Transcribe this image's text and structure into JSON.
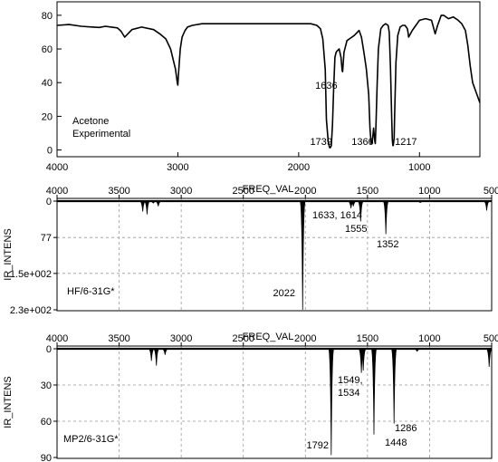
{
  "chart_data": [
    {
      "type": "line",
      "panel": "experimental",
      "annotation": [
        "Acetone",
        "Experimental"
      ],
      "xlabel": "",
      "ylabel": "",
      "xlim": [
        4000,
        500
      ],
      "ylim": [
        -4,
        88
      ],
      "x_ticks": [
        4000,
        3000,
        2000,
        1000
      ],
      "y_ticks": [
        0,
        20,
        40,
        60,
        80
      ],
      "grid": false,
      "series": [
        {
          "x": [
            4000,
            3900,
            3800,
            3700,
            3650,
            3600,
            3550,
            3500,
            3470,
            3440,
            3420,
            3380,
            3300,
            3200,
            3150,
            3100,
            3060,
            3020,
            3005,
            3000,
            2995,
            2980,
            2965,
            2940,
            2920,
            2880,
            2800,
            2600,
            2400,
            2200,
            2000,
            1950,
            1900,
            1850,
            1820,
            1800,
            1780,
            1770,
            1755,
            1745,
            1739,
            1730,
            1720,
            1710,
            1700,
            1690,
            1680,
            1665,
            1650,
            1640,
            1636,
            1625,
            1600,
            1570,
            1540,
            1500,
            1480,
            1460,
            1440,
            1420,
            1410,
            1400,
            1390,
            1380,
            1370,
            1366,
            1360,
            1350,
            1340,
            1320,
            1300,
            1280,
            1260,
            1250,
            1240,
            1230,
            1225,
            1220,
            1217,
            1210,
            1205,
            1195,
            1180,
            1160,
            1140,
            1120,
            1100,
            1095,
            1090,
            1060,
            1000,
            950,
            900,
            870,
            850,
            820,
            800,
            760,
            720,
            680,
            650,
            620,
            600,
            580,
            560,
            530,
            510,
            500
          ],
          "y": [
            74,
            74.5,
            73.5,
            73,
            72.8,
            73.5,
            73,
            72.5,
            70.5,
            67,
            68.5,
            71.5,
            73,
            71.5,
            69,
            66,
            60,
            48,
            40,
            38.5,
            45,
            60,
            67,
            71,
            73,
            74,
            75,
            75,
            75,
            75,
            75,
            75,
            75,
            74,
            72,
            66,
            48,
            18,
            5,
            1.5,
            1.3,
            2.5,
            15,
            38,
            55,
            58,
            59,
            60,
            55,
            47,
            46.5,
            58,
            65,
            66.5,
            68,
            71,
            67,
            58,
            48,
            33,
            13,
            3.8,
            5,
            13,
            5.5,
            3.8,
            16,
            40,
            60,
            72,
            74,
            75,
            74,
            70,
            48,
            19,
            6,
            2.6,
            2.6,
            7,
            22,
            52,
            68,
            73,
            74,
            74,
            72,
            70,
            67,
            71,
            77,
            78,
            77,
            69,
            74,
            80,
            80,
            78,
            79,
            77,
            75,
            71,
            62,
            50,
            40,
            34,
            30,
            28
          ]
        }
      ],
      "peak_labels": [
        {
          "x": 1739,
          "text": "1739"
        },
        {
          "x": 1636,
          "text": "1636"
        },
        {
          "x": 1366,
          "text": "1366"
        },
        {
          "x": 1217,
          "text": "1217"
        }
      ]
    },
    {
      "type": "bar",
      "panel": "hf",
      "annotation": [
        "HF/6-31G*"
      ],
      "xlabel": "FREQ_VAL",
      "ylabel": "IR_INTENS",
      "xlim": [
        4000,
        500
      ],
      "ylim": [
        0,
        230
      ],
      "x_ticks": [
        4000,
        3500,
        3000,
        2500,
        2000,
        1500,
        1000,
        500
      ],
      "y_ticks": [
        0,
        77,
        153,
        230
      ],
      "y_tick_labels": [
        "0",
        "77",
        "1.5e+002",
        "2.3e+002"
      ],
      "grid": true,
      "series": [
        {
          "x": [
            3310,
            3275,
            3225,
            3185,
            2022,
            1633,
            1614,
            1555,
            1352,
            1075,
            540
          ],
          "y": [
            22,
            28,
            4,
            11,
            230,
            15,
            11,
            43,
            70,
            3,
            20
          ]
        }
      ],
      "peak_labels": [
        {
          "x": 1633,
          "text": "1633, 1614"
        },
        {
          "x": 1555,
          "text": "1555"
        },
        {
          "x": 1352,
          "text": "1352"
        },
        {
          "x": 2022,
          "text": "2022"
        }
      ]
    },
    {
      "type": "bar",
      "panel": "mp2",
      "annotation": [
        "MP2/6-31G*"
      ],
      "xlabel": "FREQ_VAL",
      "ylabel": "IR_INTENS",
      "xlim": [
        4000,
        500
      ],
      "ylim": [
        0,
        90
      ],
      "x_ticks": [
        4000,
        3500,
        3000,
        2500,
        2000,
        1500,
        1000,
        500
      ],
      "y_ticks": [
        0,
        30,
        60,
        90
      ],
      "y_tick_labels": [
        "0",
        "30",
        "60",
        "90"
      ],
      "grid": true,
      "series": [
        {
          "x": [
            3240,
            3200,
            3130,
            1792,
            1549,
            1534,
            1448,
            1286,
            1100,
            520
          ],
          "y": [
            10,
            14,
            5,
            88,
            20,
            18,
            71,
            62,
            2,
            15
          ]
        }
      ],
      "peak_labels": [
        {
          "x": 1549,
          "text": "1549,"
        },
        {
          "x": 1534,
          "text": "1534"
        },
        {
          "x": 1792,
          "text": "1792"
        },
        {
          "x": 1448,
          "text": "1448"
        },
        {
          "x": 1286,
          "text": "1286"
        }
      ]
    }
  ]
}
